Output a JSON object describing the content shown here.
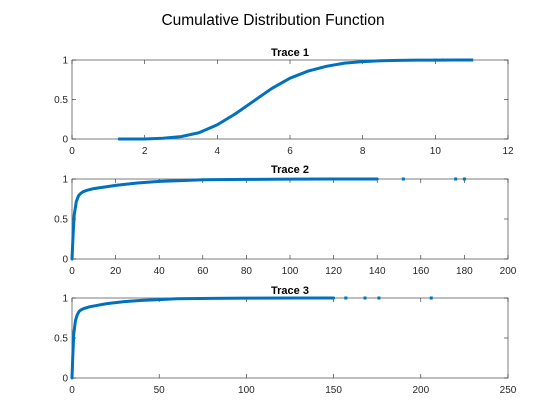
{
  "figure": {
    "title": "Cumulative Distribution Function",
    "background": "#ffffff",
    "line_color": "#0072bd",
    "axis_color": "#262626"
  },
  "chart_data": [
    {
      "type": "line",
      "title": "Trace 1",
      "xlim": [
        0,
        12
      ],
      "ylim": [
        0,
        1
      ],
      "xticks": [
        0,
        2,
        4,
        6,
        8,
        10,
        12
      ],
      "xtick_labels": [
        "0",
        "2",
        "4",
        "6",
        "8",
        "10",
        "12"
      ],
      "yticks": [
        0,
        0.5,
        1
      ],
      "ytick_labels": [
        "0",
        "0.5",
        "1"
      ],
      "series": [
        {
          "x": [
            1.3,
            2.0,
            2.5,
            3.0,
            3.5,
            4.0,
            4.5,
            5.0,
            5.5,
            6.0,
            6.5,
            7.0,
            7.5,
            8.0,
            8.5,
            9.0,
            9.5,
            10.0,
            10.5,
            11.0
          ],
          "y": [
            0.0,
            0.0,
            0.01,
            0.03,
            0.08,
            0.18,
            0.32,
            0.48,
            0.64,
            0.77,
            0.86,
            0.92,
            0.96,
            0.98,
            0.99,
            0.995,
            0.998,
            0.999,
            1.0,
            1.0
          ]
        }
      ],
      "outlier_points": [
        10.0,
        10.2,
        10.5,
        10.7,
        10.9,
        11.0
      ]
    },
    {
      "type": "line",
      "title": "Trace 2",
      "xlim": [
        0,
        200
      ],
      "ylim": [
        0,
        1
      ],
      "xticks": [
        0,
        20,
        40,
        60,
        80,
        100,
        120,
        140,
        160,
        180,
        200
      ],
      "xtick_labels": [
        "0",
        "20",
        "40",
        "60",
        "80",
        "100",
        "120",
        "140",
        "160",
        "180",
        "200"
      ],
      "yticks": [
        0,
        0.5,
        1
      ],
      "ytick_labels": [
        "0",
        "0.5",
        "1"
      ],
      "series": [
        {
          "x": [
            0,
            0.5,
            1,
            2,
            3,
            4,
            5,
            7,
            10,
            15,
            20,
            30,
            40,
            50,
            60,
            80,
            100,
            120,
            140
          ],
          "y": [
            0.0,
            0.3,
            0.55,
            0.72,
            0.79,
            0.82,
            0.84,
            0.86,
            0.88,
            0.9,
            0.92,
            0.95,
            0.97,
            0.98,
            0.99,
            0.995,
            0.998,
            1.0,
            1.0
          ]
        }
      ],
      "outlier_points": [
        110,
        115,
        120,
        125,
        135,
        152,
        176,
        180
      ]
    },
    {
      "type": "line",
      "title": "Trace 3",
      "xlim": [
        0,
        250
      ],
      "ylim": [
        0,
        1
      ],
      "xticks": [
        0,
        50,
        100,
        150,
        200,
        250
      ],
      "xtick_labels": [
        "0",
        "50",
        "100",
        "150",
        "200",
        "250"
      ],
      "yticks": [
        0,
        0.5,
        1
      ],
      "ytick_labels": [
        "0",
        "0.5",
        "1"
      ],
      "series": [
        {
          "x": [
            0,
            0.5,
            1,
            2,
            3,
            4,
            5,
            7,
            10,
            15,
            20,
            30,
            40,
            50,
            60,
            80,
            100,
            130,
            150
          ],
          "y": [
            0.0,
            0.3,
            0.55,
            0.72,
            0.79,
            0.83,
            0.85,
            0.87,
            0.89,
            0.91,
            0.93,
            0.955,
            0.97,
            0.98,
            0.99,
            0.995,
            0.998,
            1.0,
            1.0
          ]
        }
      ],
      "outlier_points": [
        130,
        140,
        145,
        157,
        168,
        176,
        206
      ]
    }
  ]
}
